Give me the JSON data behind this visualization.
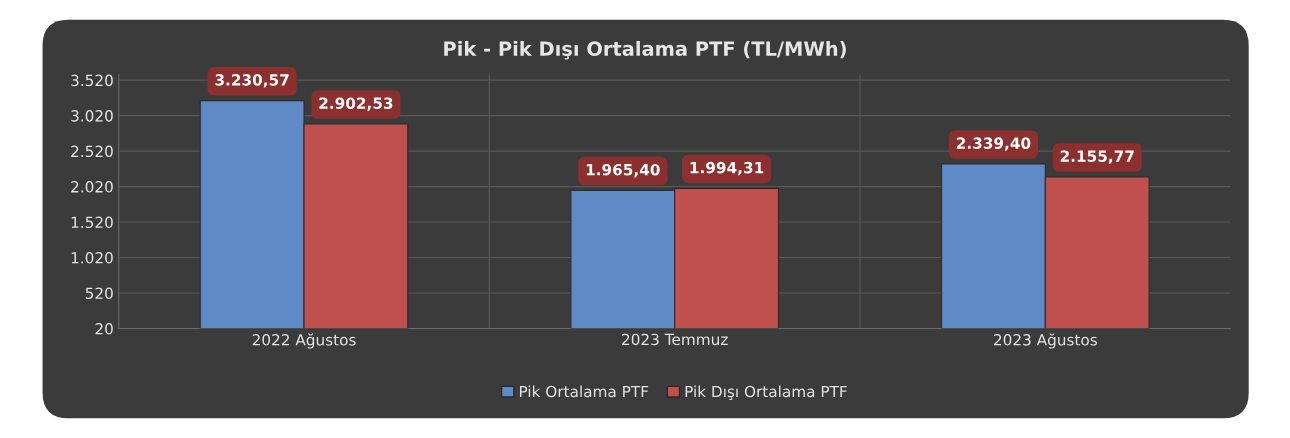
{
  "chart_data": {
    "type": "bar",
    "title": "Pik - Pik Dışı Ortalama PTF (TL/MWh)",
    "categories": [
      "2022 Ağustos",
      "2023 Temmuz",
      "2023 Ağustos"
    ],
    "series": [
      {
        "name": "Pik Ortalama PTF",
        "color": "#5f8ac6",
        "values": [
          3230.57,
          1965.4,
          2339.4
        ],
        "value_labels": [
          "3.230,57",
          "1.965,40",
          "2.339,40"
        ]
      },
      {
        "name": "Pik Dışı Ortalama PTF",
        "color": "#c0504d",
        "values": [
          2902.53,
          1994.31,
          2155.77
        ],
        "value_labels": [
          "2.902,53",
          "1.994,31",
          "2.155,77"
        ]
      }
    ],
    "ylim": [
      20,
      3600
    ],
    "yticks": [
      {
        "value": 20,
        "label": "20"
      },
      {
        "value": 520,
        "label": "520"
      },
      {
        "value": 1020,
        "label": "1.020"
      },
      {
        "value": 1520,
        "label": "1.520"
      },
      {
        "value": 2020,
        "label": "2.020"
      },
      {
        "value": 2520,
        "label": "2.520"
      },
      {
        "value": 3020,
        "label": "3.020"
      },
      {
        "value": 3520,
        "label": "3.520"
      }
    ],
    "grid": true,
    "legend": "bottom"
  }
}
